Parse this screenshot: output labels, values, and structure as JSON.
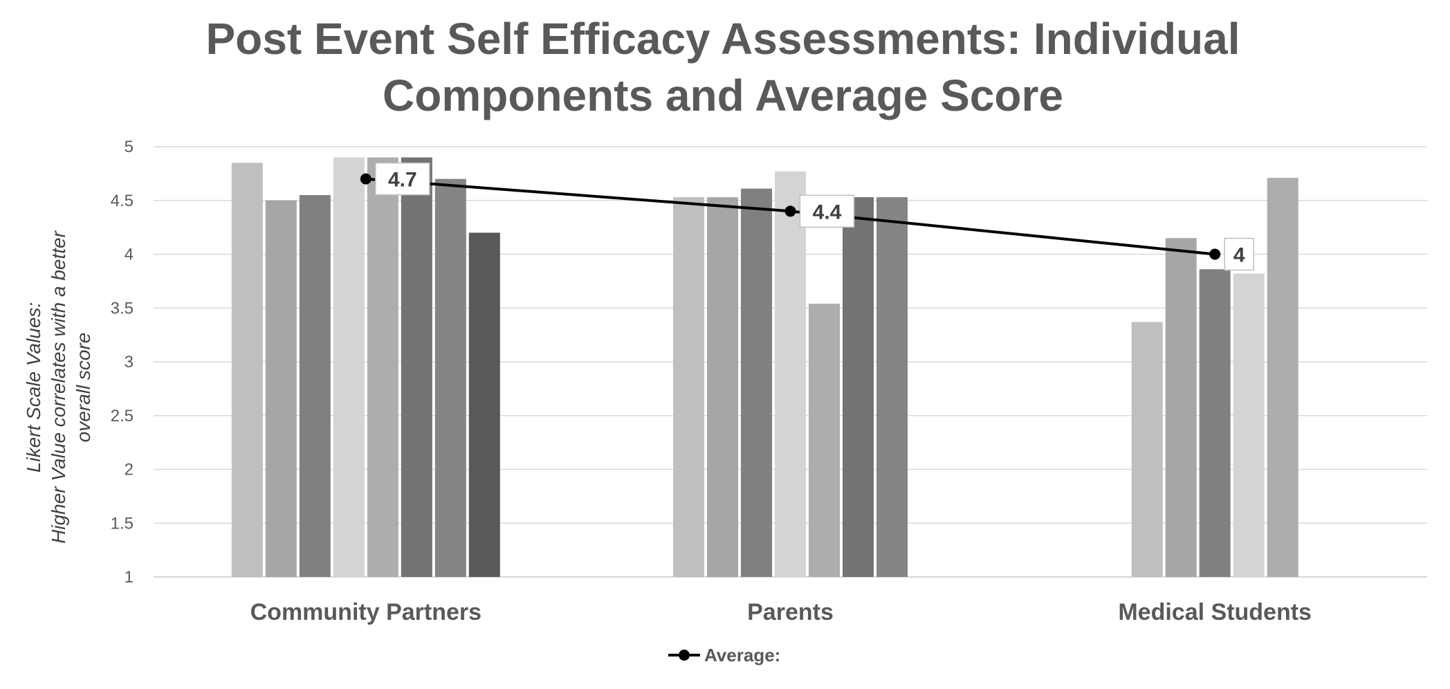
{
  "chart_data": {
    "type": "bar",
    "title": "Post Event Self Efficacy Assessments: Individual Components and Average Score",
    "title_lines": [
      "Post Event Self Efficacy Assessments: Individual",
      "Components and Average Score"
    ],
    "ylabel_lines": [
      "Likert Scale Values:",
      "Higher Value correlates with a better",
      "overall score"
    ],
    "ylim": [
      1,
      5
    ],
    "yticks": [
      "1",
      "1.5",
      "2",
      "2.5",
      "3",
      "3.5",
      "4",
      "4.5",
      "5"
    ],
    "grid": true,
    "categories": [
      "Community Partners",
      "Parents",
      "Medical Students"
    ],
    "bar_groups": [
      [
        4.85,
        4.5,
        4.55,
        4.9,
        4.9,
        4.9,
        4.7,
        4.2
      ],
      [
        4.53,
        4.53,
        4.61,
        4.77,
        3.54,
        4.53,
        4.53
      ],
      [
        3.37,
        4.15,
        3.86,
        3.82,
        4.71
      ]
    ],
    "bar_colors": [
      "#bfbfbf",
      "#a6a6a6",
      "#808080",
      "#d4d4d4",
      "#adadad",
      "#737373",
      "#858585",
      "#595959"
    ],
    "line_series": {
      "name": "Average:",
      "values": [
        4.7,
        4.4,
        4.0
      ],
      "labels": [
        "4.7",
        "4.4",
        "4"
      ],
      "color": "#000000"
    },
    "legend_position": "bottom"
  }
}
